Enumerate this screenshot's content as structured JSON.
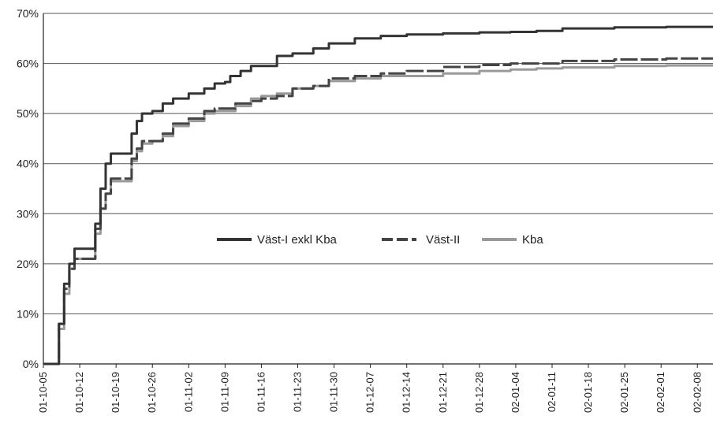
{
  "chart_data": {
    "type": "line",
    "title": "",
    "xlabel": "",
    "ylabel": "",
    "ylim": [
      0,
      70
    ],
    "y_ticks": [
      "0%",
      "10%",
      "20%",
      "30%",
      "40%",
      "50%",
      "60%",
      "70%"
    ],
    "x_ticks": [
      "01-10-05",
      "01-10-12",
      "01-10-19",
      "01-10-26",
      "01-11-02",
      "01-11-09",
      "01-11-16",
      "01-11-23",
      "01-11-30",
      "01-12-07",
      "01-12-14",
      "01-12-21",
      "01-12-28",
      "02-01-04",
      "02-01-11",
      "02-01-18",
      "02-01-25",
      "02-02-01",
      "02-02-08"
    ],
    "x_tick_days": [
      0,
      7,
      14,
      21,
      28,
      35,
      42,
      49,
      56,
      63,
      70,
      77,
      84,
      91,
      98,
      105,
      112,
      119,
      126
    ],
    "x_range_days": [
      0,
      129
    ],
    "grid": "horizontal",
    "legend_position": "center",
    "series": [
      {
        "name": "Väst-I exkl Kba",
        "color": "#333333",
        "dash": "solid",
        "x": [
          0,
          2,
          3,
          4,
          5,
          6,
          7,
          9,
          10,
          11,
          12,
          13,
          14,
          16,
          17,
          18,
          19,
          21,
          23,
          25,
          28,
          31,
          33,
          35,
          36,
          38,
          40,
          42,
          45,
          48,
          52,
          55,
          60,
          65,
          70,
          77,
          84,
          90,
          95,
          100,
          110,
          120,
          129
        ],
        "y": [
          0,
          0,
          8,
          16,
          20,
          23,
          23,
          23,
          28,
          35,
          40,
          42,
          42,
          42,
          46,
          48.5,
          50,
          50.5,
          52,
          53,
          54,
          55,
          56,
          56.3,
          57.5,
          58.5,
          59.5,
          59.5,
          61.5,
          62,
          63,
          64,
          65,
          65.5,
          65.8,
          66,
          66.2,
          66.3,
          66.5,
          67,
          67.2,
          67.3,
          67.4
        ]
      },
      {
        "name": "Väst-II",
        "color": "#444444",
        "dash": "long-dash",
        "x": [
          0,
          2,
          3,
          4,
          5,
          6,
          7,
          9,
          10,
          11,
          12,
          13,
          14,
          16,
          17,
          18,
          19,
          21,
          23,
          25,
          28,
          31,
          33,
          35,
          37,
          40,
          42,
          45,
          48,
          52,
          55,
          60,
          65,
          70,
          77,
          84,
          90,
          95,
          100,
          110,
          120,
          129
        ],
        "y": [
          0,
          0,
          8,
          15,
          19,
          21,
          21,
          21,
          27,
          31,
          34,
          37,
          37,
          37,
          41,
          43,
          44.5,
          44.5,
          46,
          48,
          49,
          50.5,
          51,
          51,
          52,
          52.5,
          53,
          53.5,
          55,
          55.5,
          57,
          57.5,
          58,
          58.5,
          59.3,
          59.7,
          60,
          60,
          60.5,
          60.8,
          61,
          61
        ]
      },
      {
        "name": "Kba",
        "color": "#9a9a9a",
        "dash": "solid",
        "x": [
          0,
          2,
          3,
          4,
          5,
          6,
          7,
          9,
          10,
          11,
          12,
          13,
          14,
          16,
          17,
          18,
          19,
          21,
          23,
          25,
          28,
          31,
          33,
          35,
          37,
          40,
          42,
          45,
          48,
          52,
          55,
          60,
          65,
          70,
          77,
          84,
          90,
          95,
          100,
          110,
          120,
          129
        ],
        "y": [
          0,
          0,
          7,
          14,
          19,
          21,
          21,
          21,
          26,
          31,
          34,
          36.5,
          36.5,
          36.5,
          40.5,
          42.5,
          44,
          44.5,
          45.5,
          47.5,
          48.5,
          50,
          50.5,
          50.5,
          51.5,
          53,
          53.5,
          54,
          55,
          55.5,
          56.5,
          57,
          57.5,
          57.5,
          58,
          58.5,
          58.8,
          59,
          59.2,
          59.5,
          59.6,
          59.6
        ]
      }
    ]
  }
}
